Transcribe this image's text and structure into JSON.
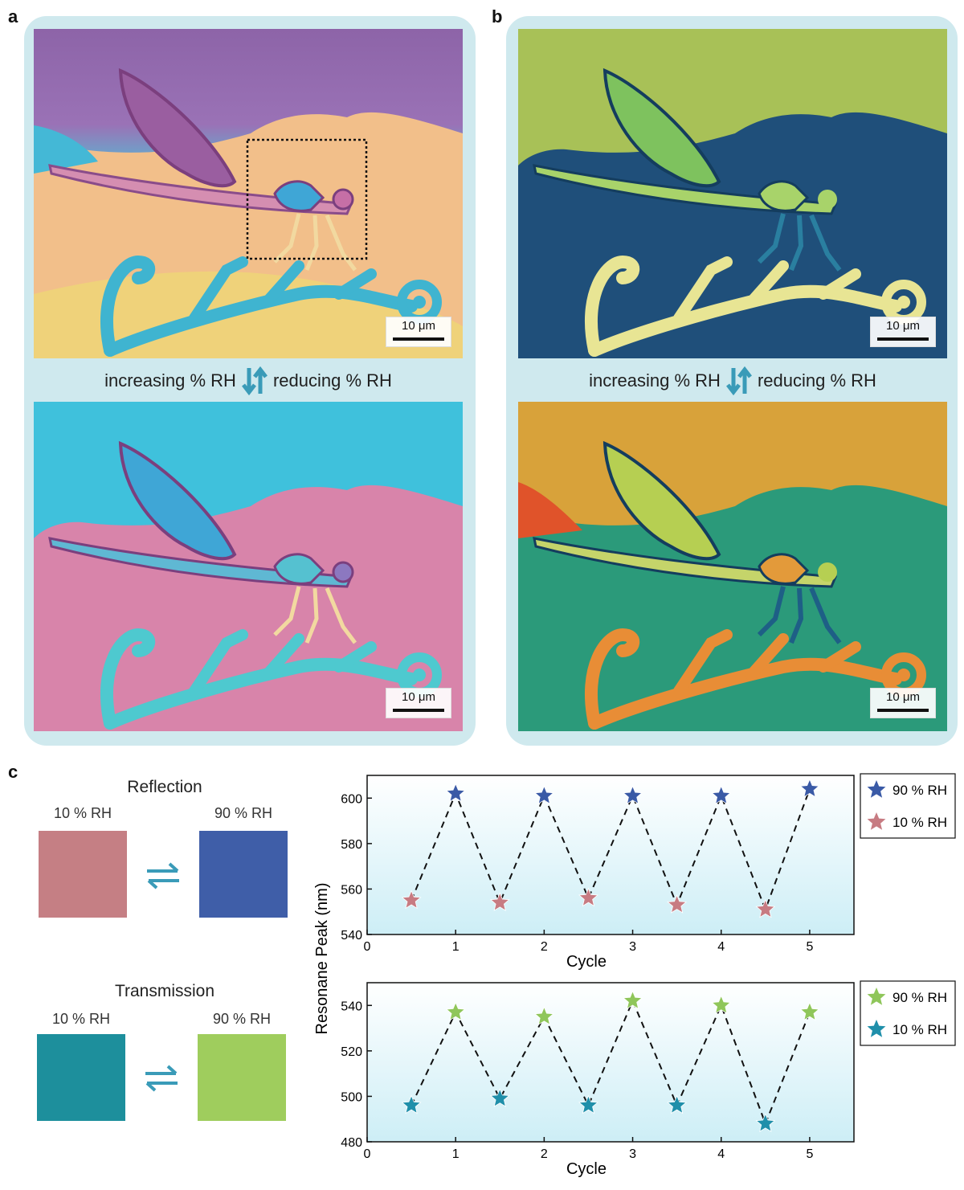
{
  "panel_labels": {
    "a": "a",
    "b": "b",
    "c": "c"
  },
  "panel_a": {
    "rh_increasing": "increasing % RH",
    "rh_reducing": "reducing % RH",
    "scale_top": "10 μm",
    "scale_bottom": "10 μm"
  },
  "panel_b": {
    "rh_increasing": "increasing % RH",
    "rh_reducing": "reducing % RH",
    "scale_top": "10 μm",
    "scale_bottom": "10 μm"
  },
  "panel_c": {
    "reflection": {
      "title": "Reflection",
      "left_label": "10 % RH",
      "right_label": "90 % RH",
      "left_color": "#c57f84",
      "right_color": "#3f5ea8"
    },
    "transmission": {
      "title": "Transmission",
      "left_label": "10 % RH",
      "right_label": "90 % RH",
      "left_color": "#1d8f9c",
      "right_color": "#9fcd5d"
    }
  },
  "chart_data": [
    {
      "type": "scatter",
      "title": "",
      "xlabel": "Cycle",
      "ylabel": "Resonane Peak (nm)",
      "xlim": [
        0,
        5.5
      ],
      "ylim": [
        540,
        610
      ],
      "xticks": [
        "0",
        "1",
        "2",
        "3",
        "4",
        "5"
      ],
      "yticks": [
        "540",
        "560",
        "580",
        "600"
      ],
      "legend_position": "top-right outside",
      "connector": "dashed black line",
      "series": [
        {
          "name": "90 % RH",
          "color": "#3a5aa6",
          "marker": "star",
          "x": [
            1,
            2,
            3,
            4,
            5
          ],
          "y": [
            602,
            601,
            601,
            601,
            604
          ]
        },
        {
          "name": "10 % RH",
          "color": "#c77b82",
          "marker": "star",
          "x": [
            0.5,
            1.5,
            2.5,
            3.5,
            4.5
          ],
          "y": [
            555,
            554,
            556,
            553,
            551
          ]
        }
      ]
    },
    {
      "type": "scatter",
      "title": "",
      "xlabel": "Cycle",
      "ylabel": "Resonane Peak (nm)",
      "xlim": [
        0,
        5.5
      ],
      "ylim": [
        480,
        550
      ],
      "xticks": [
        "0",
        "1",
        "2",
        "3",
        "4",
        "5"
      ],
      "yticks": [
        "480",
        "500",
        "520",
        "540"
      ],
      "legend_position": "top-right outside",
      "connector": "dashed black line",
      "series": [
        {
          "name": "90 % RH",
          "color": "#8fc65a",
          "marker": "star",
          "x": [
            1,
            2,
            3,
            4,
            5
          ],
          "y": [
            537,
            535,
            542,
            540,
            537
          ]
        },
        {
          "name": "10 % RH",
          "color": "#1f8faa",
          "marker": "star",
          "x": [
            0.5,
            1.5,
            2.5,
            3.5,
            4.5
          ],
          "y": [
            496,
            499,
            496,
            496,
            488
          ]
        }
      ]
    }
  ]
}
